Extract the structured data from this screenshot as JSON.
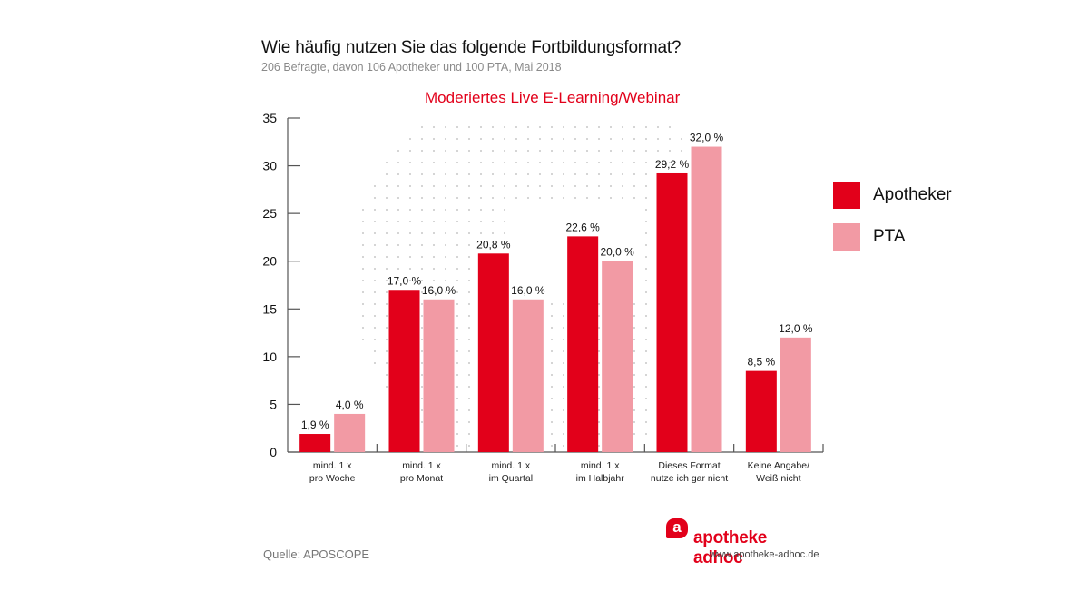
{
  "header": {
    "title": "Wie häufig nutzen Sie das folgende Fortbildungsformat?",
    "subtitle": "206 Befragte, davon 106 Apotheker und 100 PTA, Mai 2018"
  },
  "chart_data": {
    "type": "bar",
    "title": "Moderiertes Live E-Learning/Webinar",
    "xlabel": "",
    "ylabel": "",
    "ylim": [
      0,
      35
    ],
    "yticks": [
      0,
      5,
      10,
      15,
      20,
      25,
      30,
      35
    ],
    "grid": false,
    "legend_position": "right",
    "categories": [
      [
        "mind. 1 x",
        "pro Woche"
      ],
      [
        "mind. 1 x",
        "pro Monat"
      ],
      [
        "mind. 1 x",
        "im Quartal"
      ],
      [
        "mind. 1 x",
        "im Halbjahr"
      ],
      [
        "Dieses Format",
        "nutze ich gar nicht"
      ],
      [
        "Keine Angabe/",
        "Weiß nicht"
      ]
    ],
    "series": [
      {
        "name": "Apotheker",
        "color": "#e2001a",
        "values": [
          1.9,
          17.0,
          20.8,
          22.6,
          29.2,
          8.5
        ],
        "labels": [
          "1,9 %",
          "17,0 %",
          "20,8 %",
          "22,6 %",
          "29,2 %",
          "8,5 %"
        ]
      },
      {
        "name": "PTA",
        "color": "#f29aa4",
        "values": [
          4.0,
          16.0,
          16.0,
          20.0,
          32.0,
          12.0
        ],
        "labels": [
          "4,0 %",
          "16,0 %",
          "16,0 %",
          "20,0 %",
          "32,0 %",
          "12,0 %"
        ]
      }
    ]
  },
  "legend": {
    "items": [
      {
        "label": "Apotheker",
        "color": "#e2001a"
      },
      {
        "label": "PTA",
        "color": "#f29aa4"
      }
    ]
  },
  "footer": {
    "source": "Quelle: APOSCOPE",
    "brand_name": "apotheke adhoc",
    "brand_icon": "a",
    "brand_url": "www.apotheke-adhoc.de"
  }
}
